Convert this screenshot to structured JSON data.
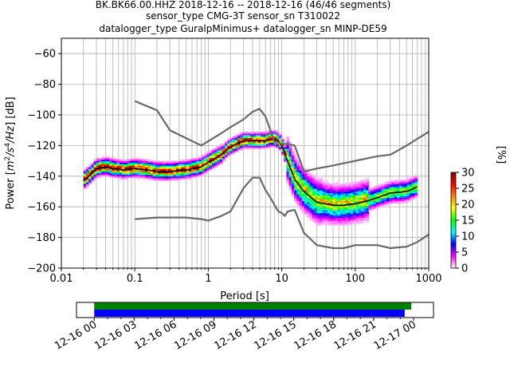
{
  "chart_data": [
    {
      "type": "heatmap",
      "title_lines": [
        "BK.BK66.00.HHZ   2018-12-16 -- 2018-12-16  (46/46 segments)",
        "sensor_type CMG-3T sensor_sn T310022",
        "datalogger_type GuralpMinimus+ datalogger_sn MINP-DE59"
      ],
      "xlabel": "Period [s]",
      "ylabel": "Power [m2/s4/Hz] [dB]",
      "ylabel_parts": {
        "a": "Power [",
        "b": "m",
        "c": "2",
        "d": "/s",
        "e": "4",
        "f": "/Hz",
        "g": "] [dB]"
      },
      "xscale": "log",
      "xlim": [
        0.01,
        1000
      ],
      "ylim": [
        -200,
        -50
      ],
      "x_ticks": [
        0.01,
        0.1,
        1,
        10,
        100,
        1000
      ],
      "x_tick_labels": [
        "0.01",
        "0.1",
        "1",
        "10",
        "100",
        "1000"
      ],
      "y_ticks": [
        -200,
        -180,
        -160,
        -140,
        -120,
        -100,
        -80,
        -60
      ],
      "y_tick_labels": [
        "−200",
        "−180",
        "−160",
        "−140",
        "−120",
        "−100",
        "−80",
        "−60"
      ],
      "grid": true,
      "colorbar": {
        "label": "[%]",
        "range": [
          0,
          30
        ],
        "ticks": [
          0,
          5,
          10,
          15,
          20,
          25,
          30
        ],
        "tick_labels": [
          "0",
          "5",
          "10",
          "15",
          "20",
          "25",
          "30"
        ],
        "colors": [
          "#ffffff",
          "#ff00ff",
          "#0000ff",
          "#00ffff",
          "#00ff00",
          "#ffff00",
          "#ff7f00",
          "#ff0000",
          "#7f0000"
        ]
      },
      "series": [
        {
          "name": "",
          "color": "#000000",
          "x": [
            0.02,
            0.025,
            0.03,
            0.04,
            0.05,
            0.07,
            0.1,
            0.15,
            0.2,
            0.3,
            0.5,
            0.8,
            1,
            1.5,
            2,
            3,
            4,
            5,
            6,
            7,
            8,
            9,
            10,
            12,
            15,
            20,
            30,
            50,
            70,
            100,
            150,
            200,
            300,
            500,
            700
          ],
          "y": [
            -143,
            -139,
            -135,
            -134,
            -135,
            -136,
            -135,
            -136,
            -137,
            -137,
            -136,
            -134,
            -131,
            -126,
            -121,
            -117,
            -117,
            -117,
            -117,
            -116,
            -116,
            -117,
            -120,
            -130,
            -142,
            -150,
            -157,
            -159,
            -159,
            -158,
            -156,
            -154,
            -151,
            -150,
            -147
          ]
        },
        {
          "name": "",
          "color": "#696969",
          "x": [
            0.1,
            0.2,
            0.3,
            0.8,
            1.5,
            2,
            3,
            4,
            5,
            6,
            7,
            8,
            9,
            10,
            11,
            12,
            15,
            20,
            30,
            50,
            100,
            200,
            300,
            500,
            1000
          ],
          "y": [
            -91,
            -97,
            -110,
            -120,
            -112,
            -108,
            -103,
            -98,
            -96,
            -101,
            -110,
            -118,
            -118,
            -119,
            -119,
            -119,
            -120,
            -137,
            -135,
            -133,
            -130,
            -127,
            -126,
            -120,
            -111
          ]
        },
        {
          "name": "",
          "color": "#696969",
          "x": [
            0.1,
            0.2,
            0.3,
            0.5,
            0.8,
            1,
            1.5,
            2,
            3,
            4,
            5,
            6,
            7,
            8,
            9,
            10,
            11,
            12,
            15,
            20,
            30,
            50,
            70,
            100,
            150,
            200,
            300,
            500,
            700,
            1000
          ],
          "y": [
            -168,
            -167,
            -167,
            -167,
            -168,
            -169,
            -166,
            -163,
            -148,
            -141,
            -141,
            -149,
            -154,
            -159,
            -163,
            -164,
            -166,
            -163,
            -162,
            -177,
            -185,
            -187,
            -187,
            -185,
            -185,
            -185,
            -187,
            -186,
            -183,
            -178
          ]
        }
      ]
    },
    {
      "type": "bar",
      "categories": [
        "",
        ""
      ],
      "series": [
        {
          "name": "",
          "color": "#008000",
          "start": "2018-12-16 00:00",
          "end": "2018-12-16 23:50"
        },
        {
          "name": "",
          "color": "#0000ff",
          "start": "2018-12-16 00:00",
          "end": "2018-12-16 23:20"
        }
      ],
      "xlim": [
        "2018-12-15 22:40",
        "2018-12-17 01:30"
      ],
      "x_tick_labels": [
        "12-16 00",
        "12-16 03",
        "12-16 06",
        "12-16 09",
        "12-16 12",
        "12-16 15",
        "12-16 18",
        "12-16 21",
        "12-17 00"
      ]
    }
  ]
}
